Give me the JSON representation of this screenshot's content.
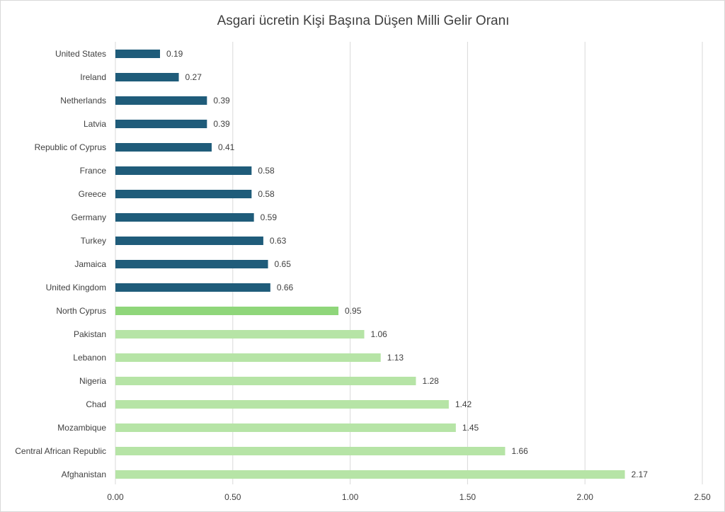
{
  "chart_data": {
    "type": "bar",
    "orientation": "horizontal",
    "title": "Asgari ücretin Kişi Başına Düşen Milli Gelir Oranı",
    "categories": [
      "United States",
      "Ireland",
      "Netherlands",
      "Latvia",
      "Republic of Cyprus",
      "France",
      "Greece",
      "Germany",
      "Turkey",
      "Jamaica",
      "United Kingdom",
      "North Cyprus",
      "Pakistan",
      "Lebanon",
      "Nigeria",
      "Chad",
      "Mozambique",
      "Central African Republic",
      "Afghanistan"
    ],
    "values": [
      0.19,
      0.27,
      0.39,
      0.39,
      0.41,
      0.58,
      0.58,
      0.59,
      0.63,
      0.65,
      0.66,
      0.95,
      1.06,
      1.13,
      1.28,
      1.42,
      1.45,
      1.66,
      2.17
    ],
    "value_labels": [
      "0.19",
      "0.27",
      "0.39",
      "0.39",
      "0.41",
      "0.58",
      "0.58",
      "0.59",
      "0.63",
      "0.65",
      "0.66",
      "0.95",
      "1.06",
      "1.13",
      "1.28",
      "1.42",
      "1.45",
      "1.66",
      "2.17"
    ],
    "bar_colors": [
      "#1f5c7a",
      "#1f5c7a",
      "#1f5c7a",
      "#1f5c7a",
      "#1f5c7a",
      "#1f5c7a",
      "#1f5c7a",
      "#1f5c7a",
      "#1f5c7a",
      "#1f5c7a",
      "#1f5c7a",
      "#8fd67a",
      "#b6e4a6",
      "#b6e4a6",
      "#b6e4a6",
      "#b6e4a6",
      "#b6e4a6",
      "#b6e4a6",
      "#b6e4a6"
    ],
    "xlim": [
      0,
      2.5
    ],
    "x_ticks": [
      0,
      0.5,
      1.0,
      1.5,
      2.0,
      2.5
    ],
    "x_tick_labels": [
      "0.00",
      "0.50",
      "1.00",
      "1.50",
      "2.00",
      "2.50"
    ],
    "grid": "vertical",
    "legend": "none",
    "xlabel": "",
    "ylabel": ""
  }
}
